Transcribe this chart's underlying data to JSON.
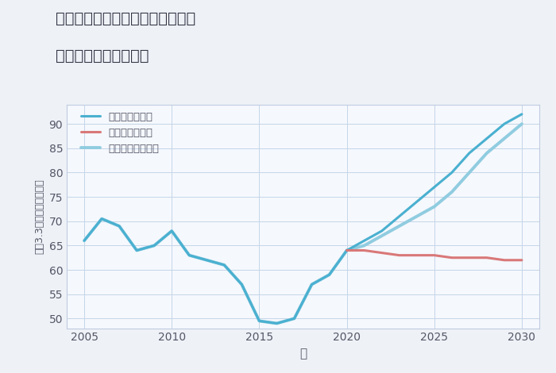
{
  "title_line1": "岐阜県土岐市肥田浅野梅ノ木町の",
  "title_line2": "中古戸建ての価格推移",
  "xlabel": "年",
  "ylabel": "坪（3.3㎡）単価（万円）",
  "background_color": "#eef2f7",
  "plot_background": "#f5f8fd",
  "xlim": [
    2004,
    2031
  ],
  "ylim": [
    48,
    94
  ],
  "yticks": [
    50,
    55,
    60,
    65,
    70,
    75,
    80,
    85,
    90
  ],
  "xticks": [
    2005,
    2010,
    2015,
    2020,
    2025,
    2030
  ],
  "good_color": "#4ab0d0",
  "bad_color": "#d97878",
  "normal_color": "#90cce0",
  "legend_labels": [
    "グッドシナリオ",
    "バッドシナリオ",
    "ノーマルシナリオ"
  ],
  "historical_years": [
    2005,
    2006,
    2007,
    2008,
    2009,
    2010,
    2011,
    2012,
    2013,
    2014,
    2015,
    2016,
    2017,
    2018,
    2019,
    2020
  ],
  "historical_values": [
    66,
    70.5,
    69,
    64,
    65,
    68,
    63,
    62,
    61,
    57,
    49.5,
    49,
    50,
    57,
    59,
    64
  ],
  "future_years": [
    2020,
    2021,
    2022,
    2023,
    2024,
    2025,
    2026,
    2027,
    2028,
    2029,
    2030
  ],
  "good_future": [
    64,
    66,
    68,
    71,
    74,
    77,
    80,
    84,
    87,
    90,
    92
  ],
  "bad_future": [
    64,
    64,
    63.5,
    63,
    63,
    63,
    62.5,
    62.5,
    62.5,
    62,
    62
  ],
  "normal_future": [
    64,
    65,
    67,
    69,
    71,
    73,
    76,
    80,
    84,
    87,
    90
  ]
}
